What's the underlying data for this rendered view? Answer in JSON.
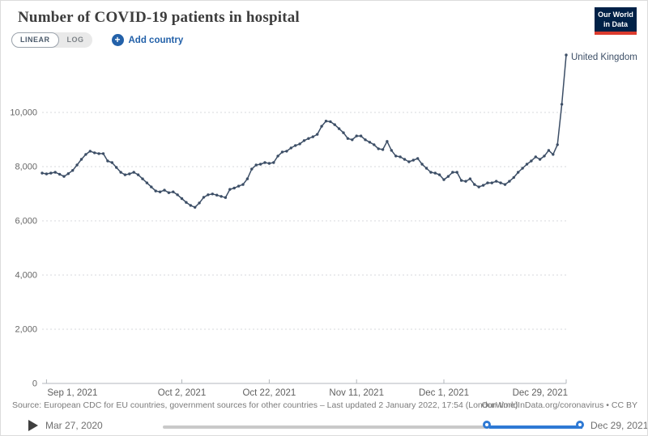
{
  "header": {
    "title": "Number of COVID-19 patients in hospital"
  },
  "controls": {
    "linear_label": "LINEAR",
    "log_label": "LOG",
    "plus_icon": "+",
    "add_country_label": "Add country"
  },
  "logo": {
    "line1": "Our World",
    "line2": "in Data"
  },
  "chart_data": {
    "type": "line",
    "title": "Number of COVID-19 patients in hospital",
    "xlabel": "",
    "ylabel": "",
    "cadence": "daily",
    "x_start": "Aug 31, 2021",
    "x_end": "Dec 29, 2021",
    "ylim": [
      0,
      12500
    ],
    "grid": "horizontal-dotted",
    "legend_position": "end-of-line-label",
    "y_ticks": [
      {
        "label": "0",
        "value": 0
      },
      {
        "label": "2,000",
        "value": 2000
      },
      {
        "label": "4,000",
        "value": 4000
      },
      {
        "label": "6,000",
        "value": 6000
      },
      {
        "label": "8,000",
        "value": 8000
      },
      {
        "label": "10,000",
        "value": 10000
      }
    ],
    "x_ticks": [
      {
        "label": "Sep 1, 2021",
        "day": 1
      },
      {
        "label": "Oct 2, 2021",
        "day": 32
      },
      {
        "label": "Oct 22, 2021",
        "day": 52
      },
      {
        "label": "Nov 11, 2021",
        "day": 72
      },
      {
        "label": "Dec 1, 2021",
        "day": 92
      },
      {
        "label": "Dec 29, 2021",
        "day": 120
      }
    ],
    "series": [
      {
        "name": "United Kingdom",
        "color": "#3C4E66",
        "values": [
          7760,
          7730,
          7760,
          7790,
          7720,
          7640,
          7740,
          7860,
          8060,
          8270,
          8450,
          8570,
          8510,
          8480,
          8480,
          8210,
          8150,
          7970,
          7790,
          7700,
          7730,
          7790,
          7700,
          7550,
          7400,
          7250,
          7100,
          7070,
          7130,
          7040,
          7070,
          6960,
          6820,
          6680,
          6570,
          6500,
          6660,
          6870,
          6960,
          6990,
          6950,
          6900,
          6860,
          7160,
          7210,
          7280,
          7340,
          7550,
          7910,
          8060,
          8090,
          8150,
          8120,
          8150,
          8390,
          8540,
          8570,
          8690,
          8780,
          8840,
          8960,
          9040,
          9100,
          9190,
          9490,
          9680,
          9660,
          9550,
          9400,
          9250,
          9040,
          8990,
          9130,
          9130,
          8990,
          8900,
          8810,
          8660,
          8630,
          8930,
          8600,
          8390,
          8360,
          8270,
          8180,
          8240,
          8300,
          8090,
          7940,
          7790,
          7760,
          7700,
          7520,
          7640,
          7790,
          7790,
          7490,
          7460,
          7550,
          7340,
          7250,
          7310,
          7400,
          7400,
          7460,
          7400,
          7340,
          7460,
          7600,
          7790,
          7940,
          8090,
          8210,
          8360,
          8270,
          8390,
          8600,
          8450,
          8810,
          10300,
          12120
        ]
      }
    ]
  },
  "footer": {
    "source": "Source: European CDC for EU countries, government sources for other countries – Last updated 2 January 2022, 17:54 (London time)",
    "attribution": "OurWorldInData.org/coronavirus • CC BY"
  },
  "timeline": {
    "start_label": "Mar 27, 2020",
    "end_label": "Dec 29, 2021",
    "range_fraction_start": 0.778,
    "range_fraction_end": 1.0
  },
  "colors": {
    "accent": "#2361A9",
    "slider_blue": "#2E79D4",
    "line": "#3C4E66",
    "logo_navy": "#002147",
    "logo_red": "#DC3B2E"
  }
}
